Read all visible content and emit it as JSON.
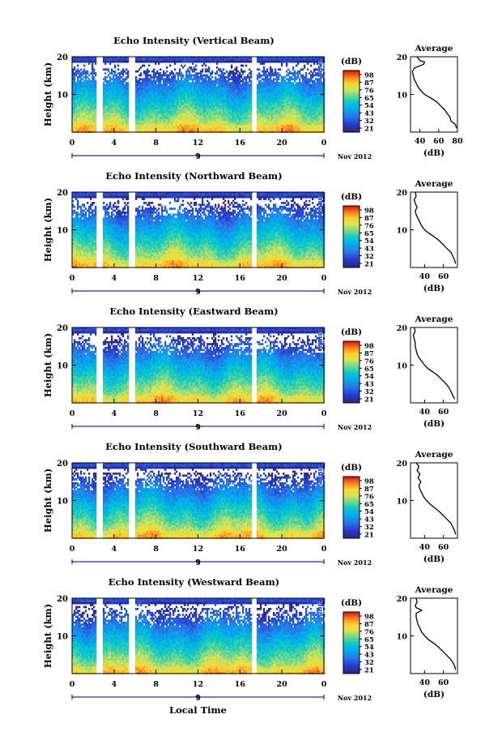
{
  "figure": {
    "xlabel": "Local Time"
  },
  "chart_data": [
    {
      "type": "heatmap",
      "title": "Echo Intensity (Vertical Beam)",
      "ylabel": "Height (km)",
      "x_ticks": [
        "0",
        "4",
        "8",
        "12",
        "16",
        "20",
        "0"
      ],
      "date_label": "9",
      "month_label": "Nov 2012",
      "y_ticks": [
        "10",
        "20"
      ],
      "colorbar_unit": "(dB)",
      "colorbar_ticks": [
        "98",
        "87",
        "76",
        "65",
        "54",
        "43",
        "32",
        "21"
      ],
      "profile": {
        "title": "Average",
        "xlabel": "(dB)",
        "x_ticks": [
          "40",
          "60",
          "80"
        ],
        "y_ticks": [
          "10",
          "20"
        ],
        "xlim": [
          30,
          80
        ],
        "points": [
          [
            79,
            1
          ],
          [
            78,
            2
          ],
          [
            73,
            3
          ],
          [
            72,
            4
          ],
          [
            69,
            5
          ],
          [
            66,
            6
          ],
          [
            62,
            7
          ],
          [
            58,
            8
          ],
          [
            52,
            9
          ],
          [
            45,
            10
          ],
          [
            41,
            11
          ],
          [
            38,
            12
          ],
          [
            36,
            13
          ],
          [
            34,
            14
          ],
          [
            33,
            15
          ],
          [
            32,
            16
          ],
          [
            34,
            17
          ],
          [
            44,
            18
          ],
          [
            45,
            18.6
          ],
          [
            40,
            19
          ],
          [
            37,
            20
          ]
        ]
      }
    },
    {
      "type": "heatmap",
      "title": "Echo Intensity (Northward Beam)",
      "ylabel": "Height (km)",
      "x_ticks": [
        "0",
        "4",
        "8",
        "12",
        "16",
        "20",
        "0"
      ],
      "date_label": "9",
      "month_label": "Nov 2012",
      "y_ticks": [
        "10",
        "20"
      ],
      "colorbar_unit": "(dB)",
      "colorbar_ticks": [
        "98",
        "87",
        "76",
        "65",
        "54",
        "43",
        "32",
        "21"
      ],
      "profile": {
        "title": "Average",
        "xlabel": "(dB)",
        "x_ticks": [
          "40",
          "60"
        ],
        "y_ticks": [
          "10",
          "20"
        ],
        "xlim": [
          25,
          75
        ],
        "points": [
          [
            73,
            1
          ],
          [
            72,
            2
          ],
          [
            70,
            3
          ],
          [
            68,
            4
          ],
          [
            64,
            5
          ],
          [
            60,
            6
          ],
          [
            56,
            7
          ],
          [
            51,
            8
          ],
          [
            45,
            9
          ],
          [
            40,
            10
          ],
          [
            37,
            11
          ],
          [
            35,
            12
          ],
          [
            33,
            13
          ],
          [
            31,
            14
          ],
          [
            30,
            15
          ],
          [
            32,
            16
          ],
          [
            30,
            17
          ],
          [
            29,
            18
          ],
          [
            31,
            19
          ],
          [
            30,
            20
          ]
        ]
      }
    },
    {
      "type": "heatmap",
      "title": "Echo Intensity (Eastward Beam)",
      "ylabel": "Height (km)",
      "x_ticks": [
        "0",
        "4",
        "8",
        "12",
        "16",
        "20",
        "0"
      ],
      "date_label": "9",
      "month_label": "Nov 2012",
      "y_ticks": [
        "10",
        "20"
      ],
      "colorbar_unit": "(dB)",
      "colorbar_ticks": [
        "98",
        "87",
        "76",
        "65",
        "54",
        "43",
        "32",
        "21"
      ],
      "profile": {
        "title": "Average",
        "xlabel": "(dB)",
        "x_ticks": [
          "40",
          "60"
        ],
        "y_ticks": [
          "10",
          "20"
        ],
        "xlim": [
          25,
          75
        ],
        "points": [
          [
            72,
            1
          ],
          [
            70,
            2
          ],
          [
            68,
            3
          ],
          [
            66,
            4
          ],
          [
            63,
            5
          ],
          [
            59,
            6
          ],
          [
            55,
            7
          ],
          [
            50,
            8
          ],
          [
            44,
            9
          ],
          [
            40,
            10
          ],
          [
            37,
            11
          ],
          [
            34,
            12
          ],
          [
            32,
            13
          ],
          [
            31,
            14
          ],
          [
            30,
            15
          ],
          [
            30,
            16
          ],
          [
            29,
            17
          ],
          [
            28,
            18
          ],
          [
            30,
            19
          ],
          [
            29,
            20
          ]
        ]
      }
    },
    {
      "type": "heatmap",
      "title": "Echo Intensity (Southward Beam)",
      "ylabel": "Height (km)",
      "x_ticks": [
        "0",
        "4",
        "8",
        "12",
        "16",
        "20",
        "0"
      ],
      "date_label": "9",
      "month_label": "Nov 2012",
      "y_ticks": [
        "10",
        "20"
      ],
      "colorbar_unit": "(dB)",
      "colorbar_ticks": [
        "98",
        "87",
        "76",
        "65",
        "54",
        "43",
        "32",
        "21"
      ],
      "profile": {
        "title": "Average",
        "xlabel": "(dB)",
        "x_ticks": [
          "40",
          "60"
        ],
        "y_ticks": [
          "10",
          "20"
        ],
        "xlim": [
          25,
          75
        ],
        "points": [
          [
            73,
            1
          ],
          [
            72,
            2
          ],
          [
            70,
            3
          ],
          [
            68,
            4
          ],
          [
            64,
            5
          ],
          [
            60,
            6
          ],
          [
            56,
            7
          ],
          [
            51,
            8
          ],
          [
            46,
            9
          ],
          [
            42,
            10
          ],
          [
            39,
            11
          ],
          [
            37,
            12
          ],
          [
            35,
            13
          ],
          [
            34,
            14
          ],
          [
            36,
            15
          ],
          [
            33,
            16
          ],
          [
            35,
            17
          ],
          [
            32,
            18
          ],
          [
            34,
            19
          ],
          [
            31,
            20
          ]
        ]
      }
    },
    {
      "type": "heatmap",
      "title": "Echo Intensity (Westward Beam)",
      "ylabel": "Height (km)",
      "x_ticks": [
        "0",
        "4",
        "8",
        "12",
        "16",
        "20",
        "0"
      ],
      "date_label": "9",
      "month_label": "Nov 2012",
      "y_ticks": [
        "10",
        "20"
      ],
      "colorbar_unit": "(dB)",
      "colorbar_ticks": [
        "98",
        "87",
        "76",
        "65",
        "54",
        "43",
        "32",
        "21"
      ],
      "profile": {
        "title": "Average",
        "xlabel": "(dB)",
        "x_ticks": [
          "40",
          "60"
        ],
        "y_ticks": [
          "10",
          "20"
        ],
        "xlim": [
          25,
          75
        ],
        "points": [
          [
            73,
            1
          ],
          [
            72,
            2
          ],
          [
            70,
            3
          ],
          [
            67,
            4
          ],
          [
            63,
            5
          ],
          [
            59,
            6
          ],
          [
            55,
            7
          ],
          [
            50,
            8
          ],
          [
            44,
            9
          ],
          [
            40,
            10
          ],
          [
            37,
            11
          ],
          [
            35,
            12
          ],
          [
            33,
            13
          ],
          [
            32,
            14
          ],
          [
            31,
            15
          ],
          [
            31,
            16
          ],
          [
            37,
            16.8
          ],
          [
            31,
            17.5
          ],
          [
            30,
            18
          ],
          [
            32,
            19
          ],
          [
            31,
            20
          ]
        ]
      }
    }
  ]
}
